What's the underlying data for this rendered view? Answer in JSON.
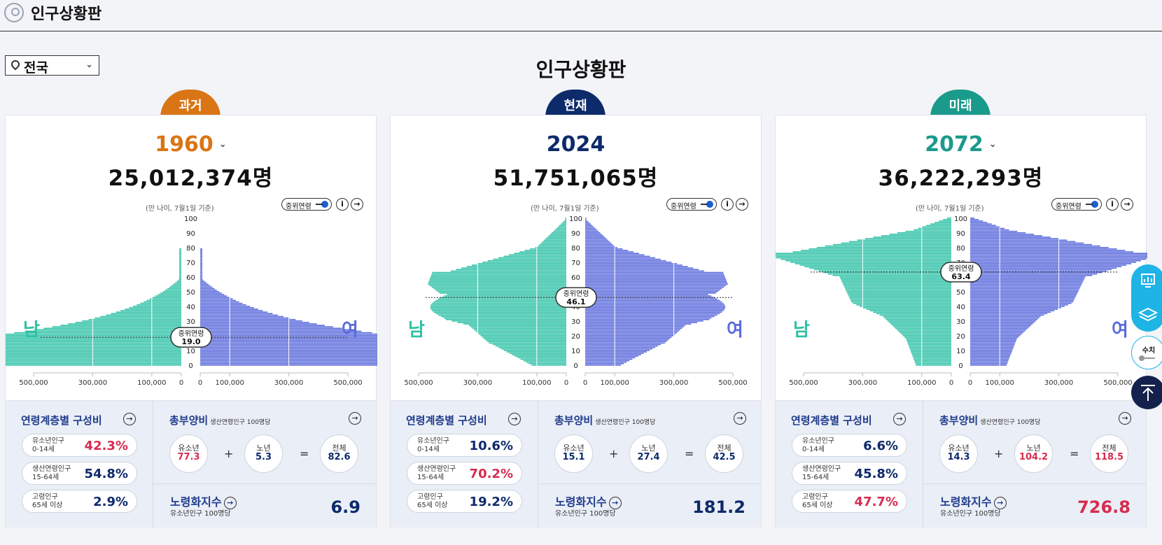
{
  "header": {
    "title": "인구상황판"
  },
  "region": {
    "label": "전국"
  },
  "page_title": "인구상황판",
  "colors": {
    "male": "#2fc1a6",
    "female": "#5a6adb",
    "navy": "#0d2a6b",
    "red": "#d62c4f",
    "orange": "#d97515",
    "teal": "#1a9a8b"
  },
  "common": {
    "basis": "(만 나이, 7월1일 기준)",
    "median_toggle": "중위연령",
    "male_label": "남",
    "female_label": "여",
    "median_label": "중위연령",
    "composition_title": "연령계층별 구성비",
    "youth_label1": "유소년인구",
    "youth_label2": "0-14세",
    "working_label1": "생산연령인구",
    "working_label2": "15-64세",
    "elderly_label1": "고령인구",
    "elderly_label2": "65세 이상",
    "dependency_title": "총부양비",
    "dependency_sub": "생산연령인구 100명당",
    "youth_short": "유소년",
    "elderly_short": "노년",
    "total_short": "전체",
    "plus": "+",
    "equals": "=",
    "aging_title": "노령화지수",
    "aging_sub": "유소년인구 100명당",
    "x_ticks_left": [
      "500,000",
      "300,000",
      "100,000",
      "0"
    ],
    "x_ticks_right": [
      "0",
      "100,000",
      "300,000",
      "500,000"
    ],
    "y_ticks": [
      "100",
      "90",
      "80",
      "70",
      "60",
      "50",
      "40",
      "30",
      "20",
      "10",
      "0"
    ]
  },
  "panels": [
    {
      "tab": "과거",
      "tab_color": "#d97515",
      "year": "1960",
      "year_color": "#d97515",
      "total": "25,012,374명",
      "median": "19.0",
      "youth_pct": "42.3%",
      "working_pct": "54.8%",
      "elderly_pct": "2.9%",
      "youth_color": "#d62c4f",
      "working_color": "#0d2a6b",
      "elderly_color": "#0d2a6b",
      "dep_youth": "77.3",
      "dep_elderly": "5.3",
      "dep_total": "82.6",
      "dep_youth_color": "#d62c4f",
      "dep_elderly_color": "#0d2a6b",
      "dep_total_color": "#0d2a6b",
      "aging": "6.9",
      "aging_color": "#0d2a6b"
    },
    {
      "tab": "현재",
      "tab_color": "#0d2a6b",
      "year": "2024",
      "year_color": "#0d2a6b",
      "total": "51,751,065명",
      "median": "46.1",
      "youth_pct": "10.6%",
      "working_pct": "70.2%",
      "elderly_pct": "19.2%",
      "youth_color": "#0d2a6b",
      "working_color": "#d62c4f",
      "elderly_color": "#0d2a6b",
      "dep_youth": "15.1",
      "dep_elderly": "27.4",
      "dep_total": "42.5",
      "dep_youth_color": "#0d2a6b",
      "dep_elderly_color": "#0d2a6b",
      "dep_total_color": "#0d2a6b",
      "aging": "181.2",
      "aging_color": "#0d2a6b"
    },
    {
      "tab": "미래",
      "tab_color": "#1a9a8b",
      "year": "2072",
      "year_color": "#1a9a8b",
      "total": "36,222,293명",
      "median": "63.4",
      "youth_pct": "6.6%",
      "working_pct": "45.8%",
      "elderly_pct": "47.7%",
      "youth_color": "#0d2a6b",
      "working_color": "#0d2a6b",
      "elderly_color": "#d62c4f",
      "dep_youth": "14.3",
      "dep_elderly": "104.2",
      "dep_total": "118.5",
      "dep_youth_color": "#0d2a6b",
      "dep_elderly_color": "#d62c4f",
      "dep_total_color": "#d62c4f",
      "aging": "726.8",
      "aging_color": "#d62c4f"
    }
  ],
  "side": {
    "values_label": "수치"
  }
}
